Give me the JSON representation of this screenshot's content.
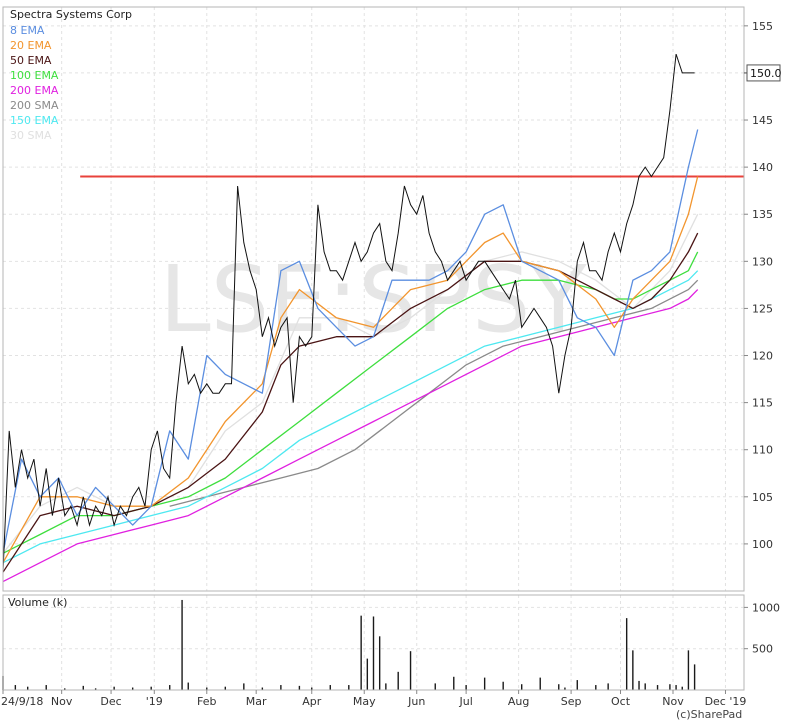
{
  "chart_data": {
    "type": "line",
    "title": "Spectra Systems Corp",
    "watermark": "LSE:SPSY",
    "legend_placement": "top-left",
    "grid": true,
    "price_panel": {
      "ylim": [
        95,
        157
      ],
      "y_ticks": [
        100,
        105,
        110,
        115,
        120,
        125,
        130,
        135,
        140,
        145,
        150,
        155
      ],
      "last_price_label": "150.0",
      "last_price": 150.0,
      "resistance_line": {
        "value": 139,
        "color": "#e8423b"
      },
      "series": [
        {
          "name": "8 EMA",
          "color": "#5b8ee0",
          "x": [
            0,
            3,
            6,
            9,
            12,
            15,
            18,
            21,
            24,
            27,
            30,
            33,
            36,
            39,
            42,
            45,
            48,
            51,
            54,
            57,
            60,
            63,
            66,
            69,
            72,
            75,
            78,
            81,
            84,
            87,
            90,
            93,
            96,
            99,
            102,
            105,
            108,
            111,
            112.5
          ],
          "values": [
            99,
            109,
            105,
            107,
            103,
            106,
            104,
            102,
            104,
            112,
            109,
            120,
            118,
            117,
            116,
            129,
            130,
            125,
            123,
            121,
            122,
            128,
            128,
            128,
            129,
            131,
            135,
            136,
            130,
            129,
            128,
            124,
            123,
            120,
            128,
            129,
            131,
            140,
            144
          ]
        },
        {
          "name": "20 EMA",
          "color": "#f2952e",
          "x": [
            0,
            6,
            12,
            18,
            24,
            30,
            36,
            42,
            45,
            48,
            54,
            60,
            66,
            72,
            78,
            81,
            84,
            90,
            96,
            99,
            102,
            105,
            108,
            111,
            112.5
          ],
          "values": [
            98,
            105,
            105,
            104,
            104,
            107,
            113,
            117,
            124,
            127,
            124,
            123,
            127,
            128,
            132,
            133,
            130,
            129,
            126,
            123,
            126,
            128,
            130,
            135,
            139
          ]
        },
        {
          "name": "50 EMA",
          "color": "#4a1414",
          "x": [
            0,
            6,
            12,
            18,
            24,
            30,
            36,
            42,
            45,
            48,
            54,
            60,
            66,
            72,
            78,
            84,
            90,
            96,
            99,
            102,
            105,
            108,
            111,
            112.5
          ],
          "values": [
            97,
            103,
            104,
            103,
            104,
            106,
            109,
            114,
            119,
            121,
            122,
            122,
            125,
            127,
            130,
            130,
            129,
            127,
            126,
            125,
            126,
            128,
            131,
            133
          ]
        },
        {
          "name": "100 EMA",
          "color": "#3ede3e",
          "x": [
            0,
            6,
            12,
            18,
            24,
            30,
            36,
            42,
            48,
            54,
            60,
            66,
            72,
            78,
            84,
            90,
            96,
            99,
            102,
            105,
            108,
            111,
            112.5
          ],
          "values": [
            99,
            101,
            103,
            103,
            104,
            105,
            107,
            110,
            113,
            116,
            119,
            122,
            125,
            127,
            128,
            128,
            127,
            126,
            126,
            127,
            128,
            129,
            131
          ]
        },
        {
          "name": "200 EMA",
          "color": "#e020e0",
          "x": [
            0,
            6,
            12,
            18,
            24,
            30,
            36,
            42,
            48,
            54,
            60,
            66,
            72,
            78,
            84,
            90,
            96,
            102,
            108,
            111,
            112.5
          ],
          "values": [
            96,
            98,
            100,
            101,
            102,
            103,
            105,
            107,
            109,
            111,
            113,
            115,
            117,
            119,
            121,
            122,
            123,
            124,
            125,
            126,
            127
          ]
        },
        {
          "name": "200 SMA",
          "color": "#8a8a8a",
          "x": [
            27,
            33,
            39,
            45,
            51,
            57,
            63,
            69,
            75,
            81,
            87,
            93,
            99,
            105,
            111,
            112.5
          ],
          "values": [
            104,
            105,
            106,
            107,
            108,
            110,
            113,
            116,
            119,
            121,
            122,
            123,
            124,
            125,
            127,
            128
          ]
        },
        {
          "name": "150 EMA",
          "color": "#4de8f0",
          "x": [
            0,
            6,
            12,
            18,
            24,
            30,
            36,
            42,
            48,
            54,
            60,
            66,
            72,
            78,
            84,
            90,
            96,
            102,
            108,
            111,
            112.5
          ],
          "values": [
            98,
            100,
            101,
            102,
            103,
            104,
            106,
            108,
            111,
            113,
            115,
            117,
            119,
            121,
            122,
            123,
            124,
            125,
            127,
            128,
            129
          ]
        },
        {
          "name": "30 SMA",
          "color": "#e0e0e0",
          "x": [
            0,
            6,
            12,
            18,
            24,
            30,
            36,
            42,
            48,
            54,
            60,
            66,
            72,
            78,
            84,
            90,
            96,
            102,
            108,
            112.5
          ],
          "values": [
            99,
            104,
            106,
            104,
            104,
            106,
            112,
            115,
            124,
            124,
            122,
            124,
            127,
            130,
            131,
            130,
            128,
            125,
            129,
            135
          ]
        }
      ],
      "ohlc_path": {
        "color": "#111111",
        "x": [
          0,
          1,
          2,
          3,
          4,
          5,
          6,
          7,
          8,
          9,
          10,
          11,
          12,
          13,
          14,
          15,
          16,
          17,
          18,
          19,
          20,
          21,
          22,
          23,
          24,
          25,
          26,
          27,
          28,
          29,
          30,
          31,
          32,
          33,
          34,
          35,
          36,
          37,
          38,
          39,
          40,
          41,
          42,
          43,
          44,
          45,
          46,
          47,
          48,
          49,
          50,
          51,
          52,
          53,
          54,
          55,
          56,
          57,
          58,
          59,
          60,
          61,
          62,
          63,
          64,
          65,
          66,
          67,
          68,
          69,
          70,
          71,
          72,
          73,
          74,
          75,
          76,
          77,
          78,
          79,
          80,
          81,
          82,
          83,
          84,
          85,
          86,
          87,
          88,
          89,
          90,
          91,
          92,
          93,
          94,
          95,
          96,
          97,
          98,
          99,
          100,
          101,
          102,
          103,
          104,
          105,
          106,
          107,
          108,
          109,
          110,
          111,
          112
        ],
        "values": [
          97,
          112,
          106,
          110,
          107,
          109,
          104,
          108,
          103,
          107,
          103,
          104,
          102,
          105,
          102,
          104,
          103,
          105,
          102,
          104,
          103,
          105,
          106,
          104,
          110,
          112,
          108,
          107,
          115,
          121,
          117,
          118,
          116,
          117,
          116,
          116,
          117,
          117,
          138,
          132,
          129,
          127,
          122,
          124,
          121,
          123,
          124,
          115,
          122,
          121,
          122,
          136,
          131,
          129,
          129,
          128,
          130,
          132,
          130,
          131,
          133,
          134,
          130,
          129,
          133,
          138,
          136,
          135,
          137,
          133,
          131,
          130,
          128,
          129,
          130,
          128,
          129,
          130,
          130,
          129,
          128,
          127,
          126,
          128,
          123,
          124,
          125,
          124,
          123,
          121,
          116,
          120,
          123,
          130,
          132,
          129,
          129,
          128,
          131,
          133,
          131,
          134,
          136,
          139,
          140,
          139,
          140,
          141,
          146,
          152,
          150,
          150,
          150
        ]
      }
    },
    "volume_panel": {
      "title": "Volume (k)",
      "ylim": [
        0,
        1150
      ],
      "y_ticks": [
        500,
        1000
      ],
      "bar_color": "#1a1a1a",
      "bars_x": [
        0,
        2,
        4,
        7,
        10,
        13,
        15,
        18,
        21,
        24,
        27,
        29,
        30,
        33,
        36,
        39,
        42,
        45,
        48,
        50,
        53,
        56,
        58,
        59,
        60,
        61,
        62,
        64,
        66,
        70,
        73,
        75,
        78,
        81,
        84,
        87,
        90,
        91,
        93,
        96,
        98,
        101,
        102,
        103,
        104,
        106,
        108,
        109,
        110,
        111,
        112
      ],
      "bars_values": [
        170,
        60,
        40,
        60,
        20,
        50,
        20,
        40,
        30,
        40,
        60,
        1090,
        90,
        30,
        40,
        80,
        30,
        60,
        50,
        30,
        60,
        60,
        900,
        380,
        890,
        650,
        80,
        220,
        470,
        80,
        160,
        60,
        150,
        100,
        70,
        150,
        70,
        30,
        120,
        60,
        80,
        870,
        480,
        110,
        80,
        60,
        70,
        60,
        40,
        480,
        310
      ]
    },
    "x_axis": {
      "tick_labels": [
        "24/9/18",
        "Nov",
        "Dec",
        "'19",
        "Feb",
        "Mar",
        "Apr",
        "May",
        "Jun",
        "Jul",
        "Aug",
        "Sep",
        "Oct",
        "Nov",
        "Dec '19"
      ],
      "tick_positions": [
        0,
        9.5,
        17.5,
        24.5,
        33,
        41,
        50,
        58.5,
        67,
        75,
        83.5,
        92,
        100,
        108.5,
        117
      ]
    },
    "copyright": "(c)SharePad"
  }
}
